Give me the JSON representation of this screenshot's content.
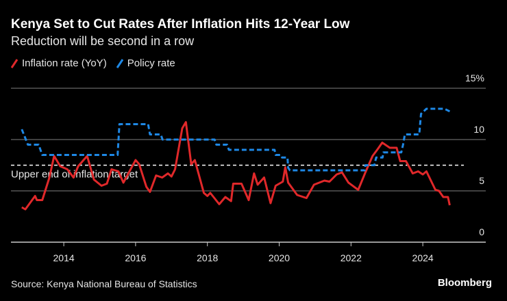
{
  "chart_data": {
    "type": "line",
    "title": "Kenya Set to Cut Rates After Inflation Hits 12-Year Low",
    "subtitle": "Reduction will be second in a row",
    "ylim": [
      0,
      15
    ],
    "yticks": [
      0,
      5,
      10,
      15
    ],
    "ytick_labels": [
      "0",
      "5",
      "10",
      "15%"
    ],
    "xlim": [
      2012.5,
      2025.2
    ],
    "xticks": [
      2014,
      2016,
      2018,
      2020,
      2022,
      2024
    ],
    "xtick_labels": [
      "2014",
      "2016",
      "2018",
      "2020",
      "2022",
      "2024"
    ],
    "grid": true,
    "legend_placement": "top-left",
    "annotation": {
      "label": "Upper end of inflation target",
      "value": 7.5
    },
    "series": [
      {
        "name": "Inflation rate (YoY)",
        "color": "#e0282a",
        "style": "solid",
        "x": [
          2012.83,
          2012.93,
          2013.2,
          2013.25,
          2013.4,
          2013.6,
          2013.73,
          2013.9,
          2014.1,
          2014.27,
          2014.4,
          2014.65,
          2014.84,
          2015.05,
          2015.2,
          2015.33,
          2015.52,
          2015.66,
          2016.0,
          2016.1,
          2016.3,
          2016.4,
          2016.57,
          2016.74,
          2016.9,
          2017.0,
          2017.1,
          2017.3,
          2017.4,
          2017.55,
          2017.65,
          2017.9,
          2018.0,
          2018.08,
          2018.33,
          2018.5,
          2018.66,
          2018.72,
          2018.95,
          2019.15,
          2019.3,
          2019.4,
          2019.58,
          2019.76,
          2019.9,
          2020.1,
          2020.17,
          2020.25,
          2020.5,
          2020.76,
          2020.97,
          2021.26,
          2021.4,
          2021.6,
          2021.75,
          2021.93,
          2022.2,
          2022.4,
          2022.6,
          2022.75,
          2022.87,
          2023.08,
          2023.27,
          2023.37,
          2023.53,
          2023.72,
          2023.87,
          2024.0,
          2024.1,
          2024.35,
          2024.45,
          2024.57,
          2024.7,
          2024.75
        ],
        "values": [
          3.4,
          3.2,
          4.5,
          4.1,
          4.1,
          6.3,
          8.4,
          7.4,
          7.1,
          6.3,
          7.4,
          8.4,
          6.1,
          5.5,
          5.7,
          7.1,
          6.9,
          5.8,
          8.0,
          7.6,
          5.4,
          4.9,
          6.5,
          6.3,
          6.7,
          6.4,
          7.1,
          11.1,
          11.7,
          7.6,
          8.0,
          4.8,
          4.5,
          4.8,
          3.7,
          4.4,
          4.0,
          5.7,
          5.7,
          4.1,
          6.7,
          5.6,
          6.3,
          3.8,
          5.5,
          5.9,
          7.3,
          5.8,
          4.6,
          4.3,
          5.6,
          6.0,
          5.9,
          6.6,
          6.8,
          5.8,
          5.1,
          6.8,
          8.4,
          9.1,
          9.7,
          9.2,
          9.2,
          7.9,
          7.9,
          6.7,
          6.9,
          6.6,
          6.9,
          5.1,
          5.0,
          4.4,
          4.4,
          3.6
        ]
      },
      {
        "name": "Policy rate",
        "color": "#1e88e5",
        "style": "dashed",
        "x": [
          2012.83,
          2013.0,
          2013.05,
          2013.3,
          2013.4,
          2015.5,
          2015.55,
          2016.35,
          2016.4,
          2016.7,
          2016.75,
          2018.2,
          2018.25,
          2018.55,
          2018.6,
          2019.87,
          2019.9,
          2020.05,
          2020.08,
          2020.23,
          2020.25,
          2020.3,
          2022.38,
          2022.4,
          2022.65,
          2022.7,
          2022.88,
          2022.9,
          2023.4,
          2023.45,
          2023.5,
          2023.9,
          2023.95,
          2024.1,
          2024.6,
          2024.75
        ],
        "values": [
          11,
          9.5,
          9.5,
          9.5,
          8.5,
          8.5,
          11.5,
          11.5,
          10.5,
          10.5,
          10,
          10,
          9.5,
          9.5,
          9,
          9,
          8.5,
          8.5,
          8.25,
          8.25,
          7.25,
          7,
          7,
          7.5,
          7.5,
          8.25,
          8.25,
          8.75,
          8.75,
          9.5,
          10.5,
          10.5,
          12.5,
          13,
          13,
          12.75
        ]
      }
    ]
  },
  "source": "Source: Kenya National Bureau of Statistics",
  "brand": "Bloomberg"
}
